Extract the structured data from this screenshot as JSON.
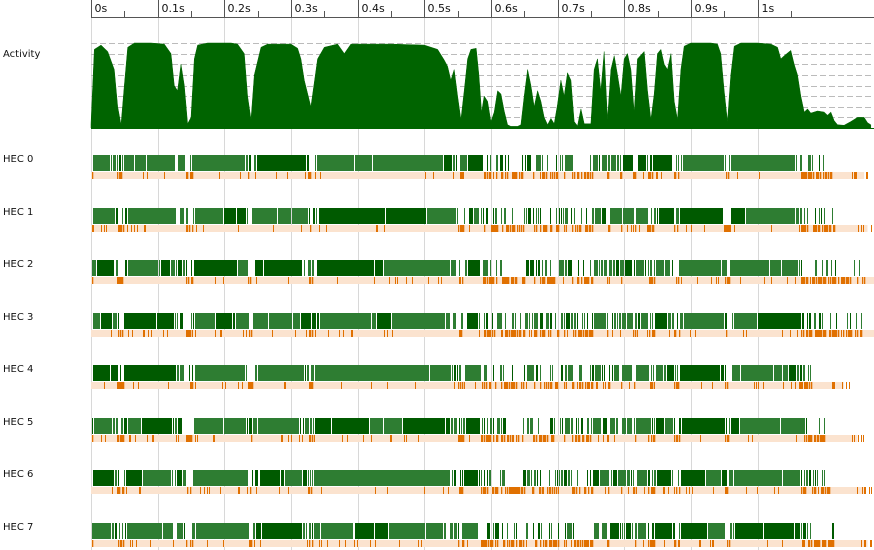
{
  "chart_data": {
    "type": "area",
    "title": "",
    "xlabel": "",
    "ylabel": "",
    "x_unit": "s",
    "xlim": [
      0,
      1.17
    ],
    "ticks": [
      {
        "value": 0.0,
        "label": "0s"
      },
      {
        "value": 0.1,
        "label": "0.1s"
      },
      {
        "value": 0.2,
        "label": "0.2s"
      },
      {
        "value": 0.3,
        "label": "0.3s"
      },
      {
        "value": 0.4,
        "label": "0.4s"
      },
      {
        "value": 0.5,
        "label": "0.5s"
      },
      {
        "value": 0.6,
        "label": "0.6s"
      },
      {
        "value": 0.7,
        "label": "0.7s"
      },
      {
        "value": 0.8,
        "label": "0.8s"
      },
      {
        "value": 0.9,
        "label": "0.9s"
      },
      {
        "value": 1.0,
        "label": "1s"
      }
    ],
    "activity": {
      "label": "Activity",
      "ylim": [
        0,
        8
      ],
      "points": [
        [
          0.0,
          0.4
        ],
        [
          0.005,
          7.4
        ],
        [
          0.015,
          7.8
        ],
        [
          0.025,
          7.2
        ],
        [
          0.035,
          5.5
        ],
        [
          0.04,
          2.0
        ],
        [
          0.045,
          0.3
        ],
        [
          0.05,
          4.0
        ],
        [
          0.055,
          7.6
        ],
        [
          0.065,
          8.0
        ],
        [
          0.09,
          8.0
        ],
        [
          0.11,
          7.9
        ],
        [
          0.12,
          7.0
        ],
        [
          0.125,
          4.0
        ],
        [
          0.13,
          3.5
        ],
        [
          0.135,
          6.0
        ],
        [
          0.14,
          4.0
        ],
        [
          0.145,
          0.4
        ],
        [
          0.15,
          1.0
        ],
        [
          0.155,
          6.5
        ],
        [
          0.16,
          7.8
        ],
        [
          0.175,
          8.0
        ],
        [
          0.21,
          8.0
        ],
        [
          0.22,
          7.9
        ],
        [
          0.23,
          7.0
        ],
        [
          0.235,
          3.0
        ],
        [
          0.24,
          0.8
        ],
        [
          0.245,
          5.0
        ],
        [
          0.255,
          7.6
        ],
        [
          0.265,
          7.9
        ],
        [
          0.3,
          7.9
        ],
        [
          0.31,
          7.5
        ],
        [
          0.315,
          6.5
        ],
        [
          0.32,
          4.5
        ],
        [
          0.33,
          2.0
        ],
        [
          0.34,
          6.5
        ],
        [
          0.35,
          7.6
        ],
        [
          0.37,
          7.9
        ],
        [
          0.38,
          7.0
        ],
        [
          0.39,
          7.9
        ],
        [
          0.45,
          7.9
        ],
        [
          0.5,
          7.8
        ],
        [
          0.52,
          7.4
        ],
        [
          0.53,
          6.4
        ],
        [
          0.535,
          5.8
        ],
        [
          0.54,
          4.5
        ],
        [
          0.545,
          5.5
        ],
        [
          0.55,
          3.0
        ],
        [
          0.555,
          0.8
        ],
        [
          0.56,
          3.5
        ],
        [
          0.565,
          6.5
        ],
        [
          0.57,
          7.4
        ],
        [
          0.578,
          7.5
        ],
        [
          0.582,
          5.0
        ],
        [
          0.586,
          1.5
        ],
        [
          0.59,
          3.0
        ],
        [
          0.595,
          2.5
        ],
        [
          0.6,
          0.6
        ],
        [
          0.605,
          1.5
        ],
        [
          0.61,
          3.5
        ],
        [
          0.615,
          3.2
        ],
        [
          0.62,
          1.6
        ],
        [
          0.625,
          0.3
        ],
        [
          0.63,
          0.15
        ],
        [
          0.64,
          0.15
        ],
        [
          0.645,
          0.3
        ],
        [
          0.65,
          3.0
        ],
        [
          0.655,
          5.5
        ],
        [
          0.66,
          4.0
        ],
        [
          0.665,
          2.0
        ],
        [
          0.67,
          3.5
        ],
        [
          0.675,
          2.5
        ],
        [
          0.68,
          1.0
        ],
        [
          0.685,
          0.3
        ],
        [
          0.69,
          0.9
        ],
        [
          0.695,
          0.4
        ],
        [
          0.7,
          2.2
        ],
        [
          0.705,
          4.5
        ],
        [
          0.71,
          3.0
        ],
        [
          0.715,
          5.2
        ],
        [
          0.72,
          4.5
        ],
        [
          0.725,
          0.6
        ],
        [
          0.73,
          0.2
        ],
        [
          0.735,
          1.8
        ],
        [
          0.74,
          0.4
        ],
        [
          0.75,
          0.4
        ],
        [
          0.755,
          5.5
        ],
        [
          0.76,
          6.5
        ],
        [
          0.765,
          3.5
        ],
        [
          0.77,
          7.2
        ],
        [
          0.775,
          0.8
        ],
        [
          0.78,
          5.5
        ],
        [
          0.785,
          6.8
        ],
        [
          0.79,
          5.0
        ],
        [
          0.795,
          3.0
        ],
        [
          0.8,
          6.5
        ],
        [
          0.805,
          7.0
        ],
        [
          0.81,
          5.5
        ],
        [
          0.815,
          1.5
        ],
        [
          0.82,
          6.5
        ],
        [
          0.83,
          7.2
        ],
        [
          0.835,
          3.5
        ],
        [
          0.84,
          0.8
        ],
        [
          0.845,
          3.2
        ],
        [
          0.85,
          7.0
        ],
        [
          0.855,
          7.4
        ],
        [
          0.86,
          6.0
        ],
        [
          0.865,
          5.5
        ],
        [
          0.87,
          7.0
        ],
        [
          0.875,
          2.5
        ],
        [
          0.88,
          0.8
        ],
        [
          0.885,
          5.5
        ],
        [
          0.89,
          7.7
        ],
        [
          0.9,
          8.0
        ],
        [
          0.93,
          8.0
        ],
        [
          0.94,
          7.9
        ],
        [
          0.945,
          7.0
        ],
        [
          0.95,
          3.5
        ],
        [
          0.955,
          0.6
        ],
        [
          0.96,
          5.0
        ],
        [
          0.965,
          7.7
        ],
        [
          0.975,
          8.0
        ],
        [
          1.0,
          8.0
        ],
        [
          1.02,
          7.9
        ],
        [
          1.03,
          7.6
        ],
        [
          1.035,
          6.5
        ],
        [
          1.04,
          6.8
        ],
        [
          1.05,
          7.3
        ],
        [
          1.055,
          6.0
        ],
        [
          1.06,
          5.0
        ],
        [
          1.065,
          3.0
        ],
        [
          1.07,
          1.5
        ],
        [
          1.075,
          1.8
        ],
        [
          1.08,
          1.4
        ],
        [
          1.09,
          1.6
        ],
        [
          1.1,
          1.5
        ],
        [
          1.105,
          1.2
        ],
        [
          1.11,
          1.5
        ],
        [
          1.115,
          0.7
        ],
        [
          1.12,
          0.3
        ],
        [
          1.13,
          0.25
        ],
        [
          1.14,
          0.6
        ],
        [
          1.15,
          1.0
        ],
        [
          1.16,
          1.0
        ],
        [
          1.165,
          0.5
        ],
        [
          1.17,
          0.3
        ]
      ]
    },
    "hecs": [
      {
        "label": "HEC 0",
        "run_end": 1.11
      },
      {
        "label": "HEC 1",
        "run_end": 1.115
      },
      {
        "label": "HEC 2",
        "run_end": 1.16
      },
      {
        "label": "HEC 3",
        "run_end": 1.155
      },
      {
        "label": "HEC 4",
        "run_end": 1.08
      },
      {
        "label": "HEC 5",
        "run_end": 1.1
      },
      {
        "label": "HEC 6",
        "run_end": 1.11
      },
      {
        "label": "HEC 7",
        "run_end": 1.115
      }
    ],
    "legend": "none",
    "grid": true,
    "colors": {
      "activity": "#006400",
      "running": "#2e7d32",
      "running_dark": "#005a00",
      "gc": "#e07000",
      "gc_light": "#fbe3cf",
      "gridline": "#d8d8d8",
      "axis": "#555555"
    }
  }
}
